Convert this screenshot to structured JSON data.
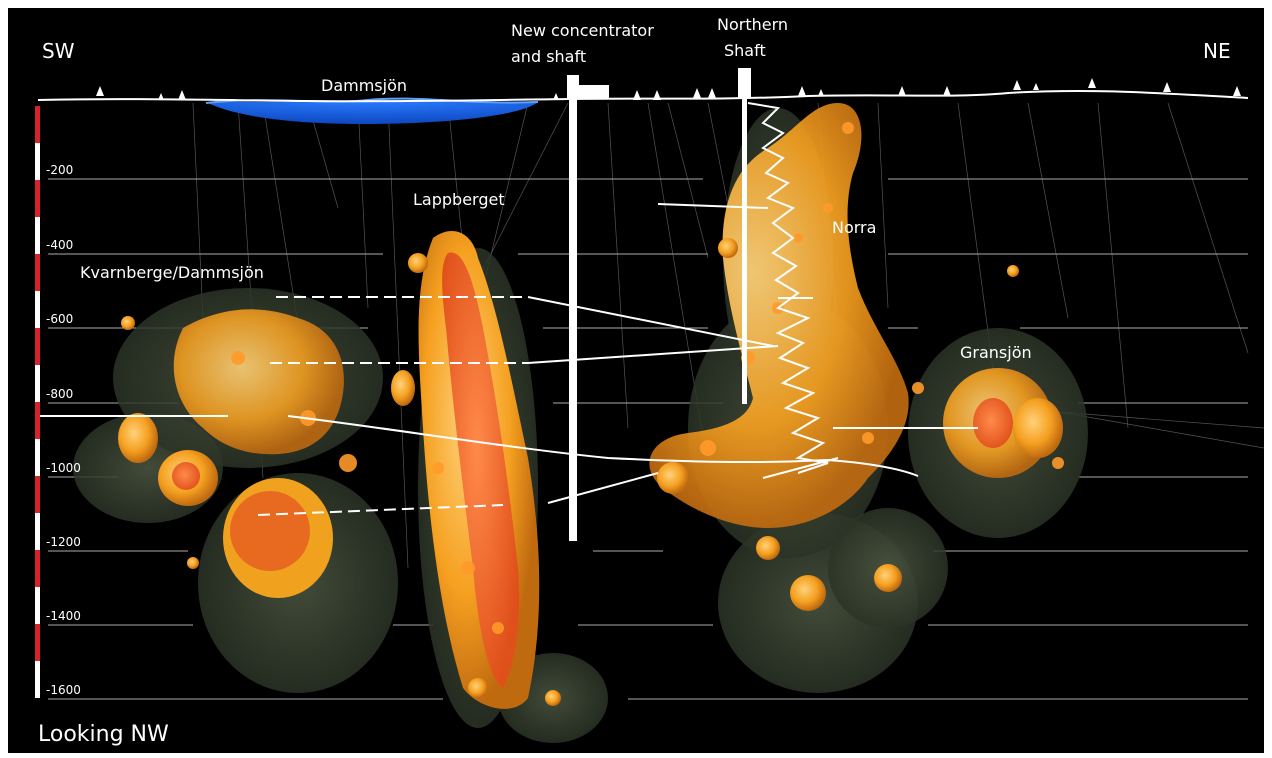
{
  "orientation": {
    "left": "SW",
    "right": "NE",
    "view": "Looking NW"
  },
  "surface_labels": {
    "lake": "Dammsjön",
    "concentrator_line1": "New concentrator",
    "concentrator_line2": "and shaft",
    "northern_line1": "Northern",
    "northern_line2": "Shaft"
  },
  "ore_zones": {
    "lappberget": "Lappberget",
    "norra": "Norra",
    "kvarnberget": "Kvarnberge/Dammsjön",
    "gransjon": "Gransjön"
  },
  "depth_levels": [
    {
      "id": "d200",
      "label": "-200"
    },
    {
      "id": "d400",
      "label": "-400"
    },
    {
      "id": "d600",
      "label": "-600"
    },
    {
      "id": "d800",
      "label": "-800"
    },
    {
      "id": "d1000",
      "label": "-1000"
    },
    {
      "id": "d1200",
      "label": "-1200"
    },
    {
      "id": "d1400",
      "label": "-1400"
    },
    {
      "id": "d1600",
      "label": "-1600"
    }
  ],
  "colors": {
    "background": "#000000",
    "lake": "#1565e0",
    "ore_core": "#f05a1a",
    "ore_mid": "#f5a623",
    "halo": "#3a4232",
    "scale_red": "#d8222a",
    "scale_white": "#ffffff"
  }
}
